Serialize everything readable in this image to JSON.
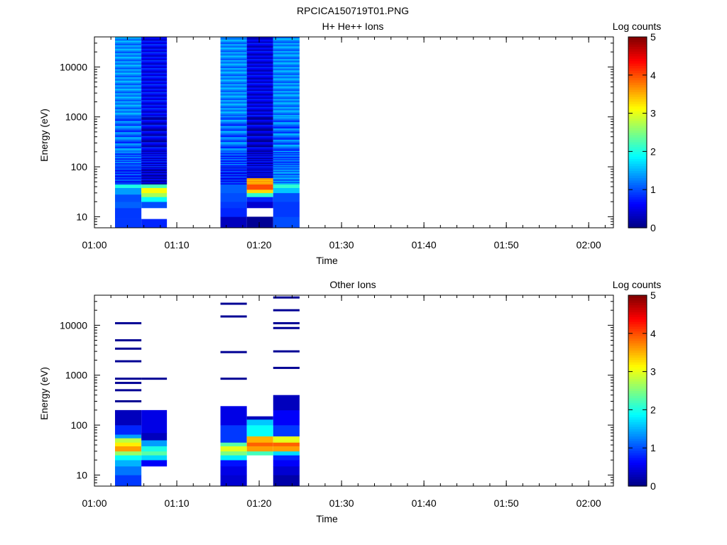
{
  "figure_title": "RPCICA150719T01.PNG",
  "colorbar_ticks": [
    "0",
    "1",
    "2",
    "3",
    "4",
    "5"
  ],
  "chart_data": [
    {
      "type": "heatmap",
      "title": "H+ He++ Ions",
      "xlabel": "Time",
      "ylabel": "Energy (eV)",
      "colorbar_label": "Log counts",
      "colorbar_range": [
        0,
        5
      ],
      "y_scale": "log",
      "ylim": [
        6,
        40000
      ],
      "xlim": [
        "01:00",
        "02:03"
      ],
      "x_ticks": [
        "01:00",
        "01:10",
        "01:20",
        "01:30",
        "01:40",
        "01:50",
        "02:00"
      ],
      "y_ticks": [
        "10",
        "100",
        "1000",
        "10000"
      ],
      "columns": [
        {
          "start": "01:02.5",
          "end": "01:05.7",
          "emax": 40000,
          "cells": [
            [
              6,
              9,
              0.9
            ],
            [
              9,
              15,
              0.9
            ],
            [
              15,
              20,
              1.1
            ],
            [
              20,
              28,
              1.0
            ],
            [
              28,
              38,
              1.4
            ],
            [
              38,
              45,
              2.0
            ],
            [
              45,
              100,
              0.9
            ],
            [
              100,
              200,
              1.1
            ],
            [
              200,
              1000,
              1.2
            ],
            [
              1000,
              40000,
              1.3
            ]
          ]
        },
        {
          "start": "01:05.7",
          "end": "01:08.8",
          "emax": 40000,
          "cells": [
            [
              6,
              9,
              0.8
            ],
            [
              9,
              15,
              null
            ],
            [
              15,
              20,
              1.0
            ],
            [
              20,
              25,
              1.9
            ],
            [
              25,
              30,
              2.7
            ],
            [
              30,
              38,
              3.1
            ],
            [
              38,
              45,
              2.2
            ],
            [
              45,
              100,
              0.4
            ],
            [
              100,
              200,
              0.6
            ],
            [
              200,
              1000,
              0.5
            ],
            [
              1000,
              40000,
              0.6
            ]
          ]
        },
        {
          "start": "01:15.3",
          "end": "01:18.5",
          "emax": 40000,
          "cells": [
            [
              6,
              10,
              0.3
            ],
            [
              10,
              15,
              0.8
            ],
            [
              15,
              20,
              0.9
            ],
            [
              20,
              30,
              1.0
            ],
            [
              30,
              45,
              1.1
            ],
            [
              45,
              100,
              0.8
            ],
            [
              100,
              200,
              1.0
            ],
            [
              200,
              1000,
              1.2
            ],
            [
              1000,
              40000,
              1.3
            ]
          ]
        },
        {
          "start": "01:18.5",
          "end": "01:21.7",
          "emax": 40000,
          "cells": [
            [
              6,
              10,
              0.1
            ],
            [
              10,
              15,
              null
            ],
            [
              15,
              20,
              0.4
            ],
            [
              20,
              25,
              0.8
            ],
            [
              25,
              30,
              2.1
            ],
            [
              30,
              35,
              3.3
            ],
            [
              35,
              45,
              4.0
            ],
            [
              45,
              60,
              3.6
            ],
            [
              60,
              100,
              0.5
            ],
            [
              100,
              200,
              0.5
            ],
            [
              200,
              1000,
              0.4
            ],
            [
              1000,
              40000,
              0.5
            ]
          ]
        },
        {
          "start": "01:21.7",
          "end": "01:24.9",
          "emax": 40000,
          "cells": [
            [
              6,
              10,
              1.0
            ],
            [
              10,
              20,
              0.9
            ],
            [
              20,
              30,
              1.0
            ],
            [
              30,
              38,
              1.6
            ],
            [
              38,
              45,
              2.1
            ],
            [
              45,
              100,
              1.3
            ],
            [
              100,
              200,
              1.1
            ],
            [
              200,
              1000,
              1.2
            ],
            [
              1000,
              40000,
              1.3
            ]
          ]
        }
      ]
    },
    {
      "type": "heatmap",
      "title": "Other Ions",
      "xlabel": "Time",
      "ylabel": "Energy (eV)",
      "colorbar_label": "Log counts",
      "colorbar_range": [
        0,
        5
      ],
      "y_scale": "log",
      "ylim": [
        6,
        40000
      ],
      "xlim": [
        "01:00",
        "02:03"
      ],
      "x_ticks": [
        "01:00",
        "01:10",
        "01:20",
        "01:30",
        "01:40",
        "01:50",
        "02:00"
      ],
      "y_ticks": [
        "10",
        "100",
        "1000",
        "10000"
      ],
      "columns": [
        {
          "start": "01:02.5",
          "end": "01:05.7",
          "emax": 200,
          "cells": [
            [
              6,
              10,
              0.9
            ],
            [
              10,
              15,
              1.2
            ],
            [
              15,
              20,
              1.5
            ],
            [
              20,
              25,
              1.9
            ],
            [
              25,
              30,
              2.6
            ],
            [
              30,
              38,
              3.6
            ],
            [
              38,
              45,
              3.2
            ],
            [
              45,
              55,
              2.8
            ],
            [
              55,
              65,
              1.4
            ],
            [
              65,
              100,
              0.8
            ],
            [
              100,
              200,
              0.3
            ]
          ],
          "lines": [
            300,
            500,
            700,
            850,
            1900,
            3400,
            5000,
            11000
          ]
        },
        {
          "start": "01:05.7",
          "end": "01:08.8",
          "emax": 200,
          "cells": [
            [
              15,
              20,
              0.6
            ],
            [
              20,
              25,
              1.7
            ],
            [
              25,
              30,
              2.3
            ],
            [
              30,
              38,
              2.0
            ],
            [
              38,
              50,
              1.4
            ],
            [
              50,
              70,
              0.3
            ],
            [
              70,
              200,
              0.5
            ]
          ],
          "lines": [
            850
          ]
        },
        {
          "start": "01:15.3",
          "end": "01:18.5",
          "emax": 240,
          "cells": [
            [
              6,
              10,
              0.4
            ],
            [
              10,
              15,
              0.5
            ],
            [
              15,
              20,
              0.7
            ],
            [
              20,
              25,
              1.8
            ],
            [
              25,
              30,
              2.5
            ],
            [
              30,
              38,
              3.0
            ],
            [
              38,
              45,
              2.3
            ],
            [
              45,
              100,
              0.9
            ],
            [
              100,
              240,
              0.5
            ]
          ],
          "lines": [
            850,
            2900,
            15000,
            27000
          ]
        },
        {
          "start": "01:18.5",
          "end": "01:21.7",
          "emax": 150,
          "cells": [
            [
              25,
              30,
              2.2
            ],
            [
              30,
              38,
              3.6
            ],
            [
              38,
              45,
              3.9
            ],
            [
              45,
              60,
              3.5
            ],
            [
              60,
              100,
              1.9
            ],
            [
              100,
              130,
              1.6
            ],
            [
              130,
              150,
              0.3
            ]
          ],
          "lines": []
        },
        {
          "start": "01:21.7",
          "end": "01:24.9",
          "emax": 400,
          "cells": [
            [
              6,
              10,
              0.2
            ],
            [
              10,
              15,
              0.4
            ],
            [
              15,
              20,
              0.6
            ],
            [
              20,
              25,
              0.8
            ],
            [
              25,
              30,
              1.7
            ],
            [
              30,
              38,
              3.6
            ],
            [
              38,
              45,
              3.9
            ],
            [
              45,
              60,
              3.0
            ],
            [
              60,
              100,
              0.9
            ],
            [
              100,
              200,
              0.6
            ],
            [
              200,
              400,
              0.3
            ]
          ],
          "lines": [
            1400,
            3000,
            8800,
            11000,
            20000,
            36000
          ]
        }
      ]
    }
  ]
}
